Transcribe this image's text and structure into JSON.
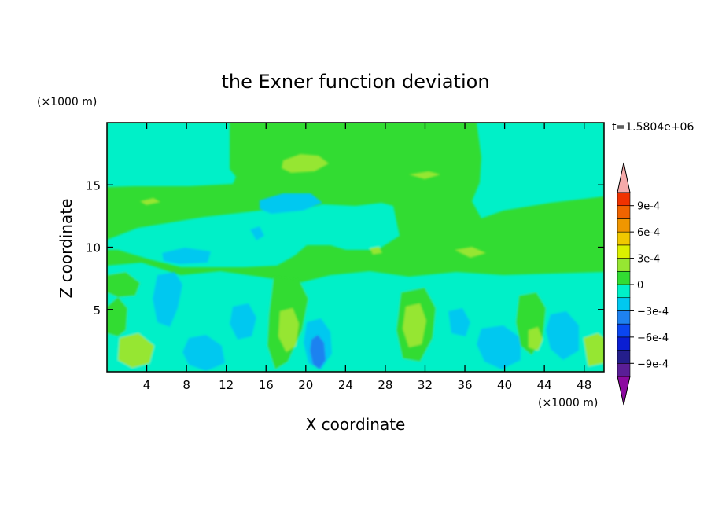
{
  "chart_data": {
    "type": "heatmap",
    "title": "the Exner function deviation",
    "xlabel": "X coordinate",
    "ylabel": "Z coordinate",
    "x_unit": "(×1000 m)",
    "y_unit": "(×1000 m)",
    "time_label": "t=1.5804e+06",
    "xlim": [
      0,
      50
    ],
    "ylim": [
      0,
      20
    ],
    "x_ticks": [
      4,
      8,
      12,
      16,
      20,
      24,
      28,
      32,
      36,
      40,
      44,
      48
    ],
    "x_tick_labels": [
      "4",
      "8",
      "12",
      "16",
      "20",
      "24",
      "28",
      "32",
      "36",
      "40",
      "44",
      "48"
    ],
    "y_ticks": [
      5,
      10,
      15
    ],
    "y_tick_labels": [
      "5",
      "10",
      "15"
    ],
    "colorbar": {
      "levels": [
        -0.00105,
        -0.0009,
        -0.00075,
        -0.0006,
        -0.00045,
        -0.0003,
        -0.00015,
        0,
        0.00015,
        0.0003,
        0.00045,
        0.0006,
        0.00075,
        0.0009,
        0.00105
      ],
      "colors": [
        "#5a1e96",
        "#241e8c",
        "#0a1ed2",
        "#0a46f0",
        "#1e82f0",
        "#00c8f0",
        "#00f0c8",
        "#32dc32",
        "#96e632",
        "#dcf000",
        "#f0c800",
        "#f09600",
        "#f06400",
        "#f03200",
        "#e61e1e",
        "#f5aaaa"
      ],
      "under_color": "#8c0aa0",
      "over_color": "#f5aaaa",
      "labels": [
        {
          "value": 0.0009,
          "text": "9e-4"
        },
        {
          "value": 0.0006,
          "text": "6e-4"
        },
        {
          "value": 0.0003,
          "text": "3e-4"
        },
        {
          "value": 0,
          "text": "0"
        },
        {
          "value": -0.0003,
          "text": "−3e-4"
        },
        {
          "value": -0.0006,
          "text": "−6e-4"
        },
        {
          "value": -0.0009,
          "text": "−9e-4"
        }
      ]
    }
  }
}
